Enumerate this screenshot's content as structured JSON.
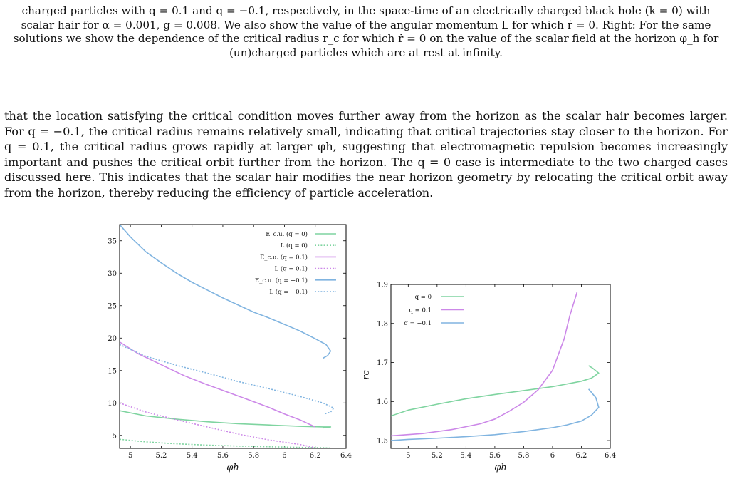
{
  "caption": {
    "text": "charged particles with q = 0.1 and q = −0.1, respectively, in the space-time of an electrically charged black hole (k = 0) with scalar hair for α = 0.001, g = 0.008. We also show the value of the angular momentum L for which ṙ = 0. Right: For the same solutions we show the dependence of the critical radius r_c for which ṙ = 0 on the value of the scalar field at the horizon φ_h for (un)charged particles which are at rest at infinity."
  },
  "body": {
    "paragraph": "that the location satisfying the critical condition moves further away from the horizon as the scalar hair becomes larger. For q = −0.1, the critical radius remains relatively small, indicating that critical trajectories stay closer to the horizon. For q = 0.1, the critical radius grows rapidly at larger φh, suggesting that electromagnetic repulsion becomes increasingly important and pushes the critical orbit further from the horizon. The q = 0 case is intermediate to the two charged cases discussed here. This indicates that the scalar hair modifies the near horizon geometry by relocating the critical orbit away from the horizon, thereby reducing the efficiency of particle acceleration."
  },
  "chart_data": [
    {
      "type": "line",
      "xlabel": "φh",
      "ylabel": "",
      "xlim": [
        4.93,
        6.4
      ],
      "ylim": [
        3.0,
        37.5
      ],
      "x_ticks": [
        "5",
        "5.2",
        "5.4",
        "5.6",
        "5.8",
        "6",
        "6.2",
        "6.4"
      ],
      "y_ticks": [
        "5",
        "10",
        "15",
        "20",
        "25",
        "30",
        "35"
      ],
      "legend_position": "top-right",
      "series": [
        {
          "name": "E_c.u. (q = 0)",
          "color": "#7fd4a0",
          "dash": "solid",
          "points": [
            [
              4.93,
              8.8
            ],
            [
              5.1,
              8.0
            ],
            [
              5.3,
              7.5
            ],
            [
              5.5,
              7.1
            ],
            [
              5.7,
              6.8
            ],
            [
              5.9,
              6.6
            ],
            [
              6.1,
              6.4
            ],
            [
              6.25,
              6.3
            ],
            [
              6.3,
              6.3
            ],
            [
              6.28,
              6.2
            ],
            [
              6.25,
              6.15
            ]
          ]
        },
        {
          "name": "L (q = 0)",
          "color": "#7fd4a0",
          "dash": "dotted",
          "points": [
            [
              4.93,
              4.4
            ],
            [
              5.1,
              4.0
            ],
            [
              5.3,
              3.7
            ],
            [
              5.5,
              3.5
            ],
            [
              5.7,
              3.35
            ],
            [
              5.9,
              3.25
            ],
            [
              6.1,
              3.15
            ],
            [
              6.25,
              3.1
            ],
            [
              6.3,
              3.05
            ]
          ]
        },
        {
          "name": "E_c.u. (q = 0.1)",
          "color": "#cc88e8",
          "dash": "solid",
          "points": [
            [
              4.93,
              19.4
            ],
            [
              5.05,
              17.6
            ],
            [
              5.2,
              15.9
            ],
            [
              5.35,
              14.2
            ],
            [
              5.5,
              12.8
            ],
            [
              5.65,
              11.5
            ],
            [
              5.8,
              10.2
            ],
            [
              5.9,
              9.3
            ],
            [
              6.0,
              8.3
            ],
            [
              6.1,
              7.4
            ],
            [
              6.2,
              6.3
            ]
          ]
        },
        {
          "name": "L (q = 0.1)",
          "color": "#cc88e8",
          "dash": "dotted",
          "points": [
            [
              4.93,
              10.0
            ],
            [
              5.1,
              8.6
            ],
            [
              5.3,
              7.4
            ],
            [
              5.5,
              6.3
            ],
            [
              5.7,
              5.2
            ],
            [
              5.9,
              4.3
            ],
            [
              6.1,
              3.6
            ],
            [
              6.2,
              3.1
            ]
          ]
        },
        {
          "name": "E_c.u. (q = −0.1)",
          "color": "#80b4e0",
          "dash": "solid",
          "points": [
            [
              4.93,
              37.5
            ],
            [
              5.0,
              35.6
            ],
            [
              5.1,
              33.3
            ],
            [
              5.2,
              31.6
            ],
            [
              5.3,
              30.0
            ],
            [
              5.4,
              28.6
            ],
            [
              5.5,
              27.4
            ],
            [
              5.6,
              26.2
            ],
            [
              5.7,
              25.1
            ],
            [
              5.8,
              24.0
            ],
            [
              5.9,
              23.1
            ],
            [
              6.0,
              22.1
            ],
            [
              6.1,
              21.1
            ],
            [
              6.2,
              19.9
            ],
            [
              6.27,
              19.0
            ],
            [
              6.3,
              18.0
            ],
            [
              6.28,
              17.3
            ],
            [
              6.25,
              16.9
            ]
          ]
        },
        {
          "name": "L (q = −0.1)",
          "color": "#80b4e0",
          "dash": "dotted",
          "points": [
            [
              4.93,
              19.0
            ],
            [
              5.1,
              17.2
            ],
            [
              5.3,
              15.8
            ],
            [
              5.5,
              14.6
            ],
            [
              5.7,
              13.3
            ],
            [
              5.9,
              12.2
            ],
            [
              6.1,
              11.0
            ],
            [
              6.25,
              10.0
            ],
            [
              6.32,
              9.2
            ],
            [
              6.3,
              8.6
            ],
            [
              6.26,
              8.3
            ]
          ]
        }
      ]
    },
    {
      "type": "line",
      "xlabel": "φh",
      "ylabel": "rc",
      "xlim": [
        4.88,
        6.4
      ],
      "ylim": [
        1.48,
        1.9
      ],
      "x_ticks": [
        "5",
        "5.2",
        "5.4",
        "5.6",
        "5.8",
        "6",
        "6.2",
        "6.4"
      ],
      "y_ticks": [
        "1.5",
        "1.6",
        "1.7",
        "1.8",
        "1.9"
      ],
      "legend_position": "top-left",
      "series": [
        {
          "name": "q = 0",
          "color": "#7fd4a0",
          "points": [
            [
              4.88,
              1.563
            ],
            [
              5.0,
              1.578
            ],
            [
              5.2,
              1.593
            ],
            [
              5.4,
              1.607
            ],
            [
              5.6,
              1.618
            ],
            [
              5.8,
              1.628
            ],
            [
              6.0,
              1.638
            ],
            [
              6.2,
              1.652
            ],
            [
              6.27,
              1.66
            ],
            [
              6.32,
              1.673
            ],
            [
              6.28,
              1.685
            ],
            [
              6.25,
              1.692
            ]
          ]
        },
        {
          "name": "q = 0.1",
          "color": "#cc88e8",
          "points": [
            [
              4.88,
              1.512
            ],
            [
              5.1,
              1.518
            ],
            [
              5.3,
              1.528
            ],
            [
              5.5,
              1.543
            ],
            [
              5.6,
              1.555
            ],
            [
              5.7,
              1.575
            ],
            [
              5.8,
              1.598
            ],
            [
              5.9,
              1.63
            ],
            [
              6.0,
              1.68
            ],
            [
              6.08,
              1.76
            ],
            [
              6.12,
              1.82
            ],
            [
              6.17,
              1.88
            ]
          ]
        },
        {
          "name": "q = −0.1",
          "color": "#80b4e0",
          "points": [
            [
              4.88,
              1.5
            ],
            [
              5.0,
              1.503
            ],
            [
              5.2,
              1.506
            ],
            [
              5.4,
              1.51
            ],
            [
              5.6,
              1.515
            ],
            [
              5.8,
              1.523
            ],
            [
              6.0,
              1.533
            ],
            [
              6.1,
              1.54
            ],
            [
              6.2,
              1.55
            ],
            [
              6.27,
              1.565
            ],
            [
              6.32,
              1.585
            ],
            [
              6.3,
              1.61
            ],
            [
              6.25,
              1.632
            ]
          ]
        }
      ]
    }
  ]
}
